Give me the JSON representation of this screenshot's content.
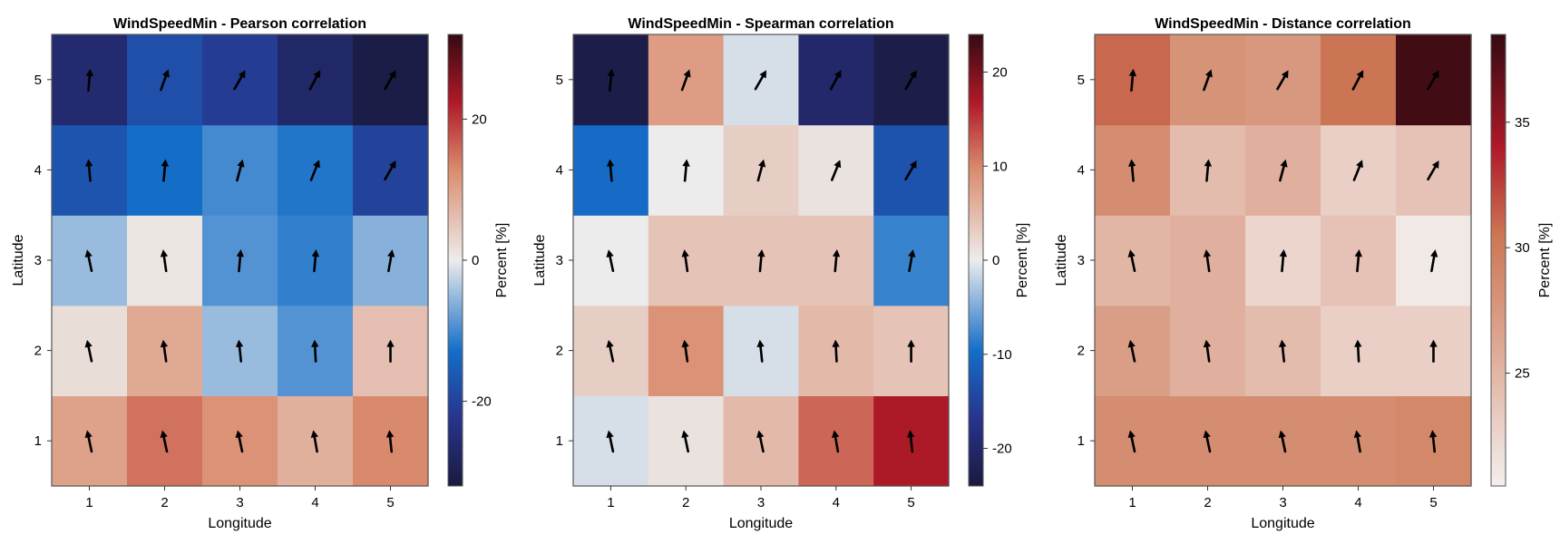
{
  "chart_data": [
    {
      "type": "heatmap",
      "title": "WindSpeedMin - Pearson correlation",
      "xlabel": "Longitude",
      "ylabel": "Latitude",
      "x": [
        1,
        2,
        3,
        4,
        5
      ],
      "y": [
        1,
        2,
        3,
        4,
        5
      ],
      "values": [
        [
          10,
          15,
          12,
          8,
          13
        ],
        [
          2,
          9,
          -5,
          -9,
          6
        ],
        [
          -5,
          1,
          -9,
          -11,
          -6
        ],
        [
          -17,
          -13,
          -10,
          -12,
          -20
        ],
        [
          -26,
          -18,
          -21,
          -27,
          -31
        ]
      ],
      "colorbar": {
        "label": "Percent [%]",
        "range": [
          -32,
          32
        ],
        "ticks": [
          -20,
          0,
          20
        ],
        "colormap": "blue-white-red diverging"
      },
      "arrows_deg_from_north": [
        [
          -12,
          -12,
          -12,
          -10,
          -6
        ],
        [
          -12,
          -8,
          -6,
          -3,
          0
        ],
        [
          -12,
          -8,
          5,
          5,
          10
        ],
        [
          -5,
          5,
          15,
          22,
          30
        ],
        [
          5,
          20,
          30,
          28,
          30
        ]
      ]
    },
    {
      "type": "heatmap",
      "title": "WindSpeedMin - Spearman correlation",
      "xlabel": "Longitude",
      "ylabel": "Latitude",
      "x": [
        1,
        2,
        3,
        4,
        5
      ],
      "y": [
        1,
        2,
        3,
        4,
        5
      ],
      "values": [
        [
          -1,
          1,
          5,
          12,
          17
        ],
        [
          3,
          9,
          -1,
          5,
          4
        ],
        [
          0,
          4,
          4,
          4,
          -8
        ],
        [
          -10,
          0,
          3,
          1,
          -13
        ],
        [
          -23,
          8,
          -1,
          -20,
          -23
        ]
      ],
      "colorbar": {
        "label": "Percent [%]",
        "range": [
          -24,
          24
        ],
        "ticks": [
          -20,
          -10,
          0,
          10,
          20
        ],
        "colormap": "blue-white-red diverging"
      },
      "arrows_deg_from_north": [
        [
          -12,
          -12,
          -12,
          -10,
          -6
        ],
        [
          -12,
          -8,
          -6,
          -3,
          0
        ],
        [
          -12,
          -8,
          5,
          5,
          10
        ],
        [
          -5,
          5,
          15,
          22,
          30
        ],
        [
          5,
          20,
          30,
          28,
          30
        ]
      ]
    },
    {
      "type": "heatmap",
      "title": "WindSpeedMin - Distance correlation",
      "xlabel": "Longitude",
      "ylabel": "Latitude",
      "x": [
        1,
        2,
        3,
        4,
        5
      ],
      "y": [
        1,
        2,
        3,
        4,
        5
      ],
      "values": [
        [
          28.5,
          28.5,
          28.5,
          28.5,
          29
        ],
        [
          27,
          25.5,
          24.5,
          23,
          23
        ],
        [
          25,
          25.5,
          22.5,
          24,
          21
        ],
        [
          28.5,
          24.5,
          25.5,
          23,
          24
        ],
        [
          31,
          28,
          27.5,
          30.5,
          38
        ]
      ],
      "colorbar": {
        "label": "Percent [%]",
        "range": [
          20.5,
          38.5
        ],
        "ticks": [
          25,
          30,
          35
        ],
        "colormap": "white-to-dark-red sequential"
      },
      "arrows_deg_from_north": [
        [
          -12,
          -12,
          -12,
          -10,
          -6
        ],
        [
          -12,
          -8,
          -6,
          -3,
          0
        ],
        [
          -12,
          -8,
          5,
          5,
          10
        ],
        [
          -5,
          5,
          15,
          22,
          30
        ],
        [
          5,
          20,
          30,
          28,
          30
        ]
      ]
    }
  ]
}
